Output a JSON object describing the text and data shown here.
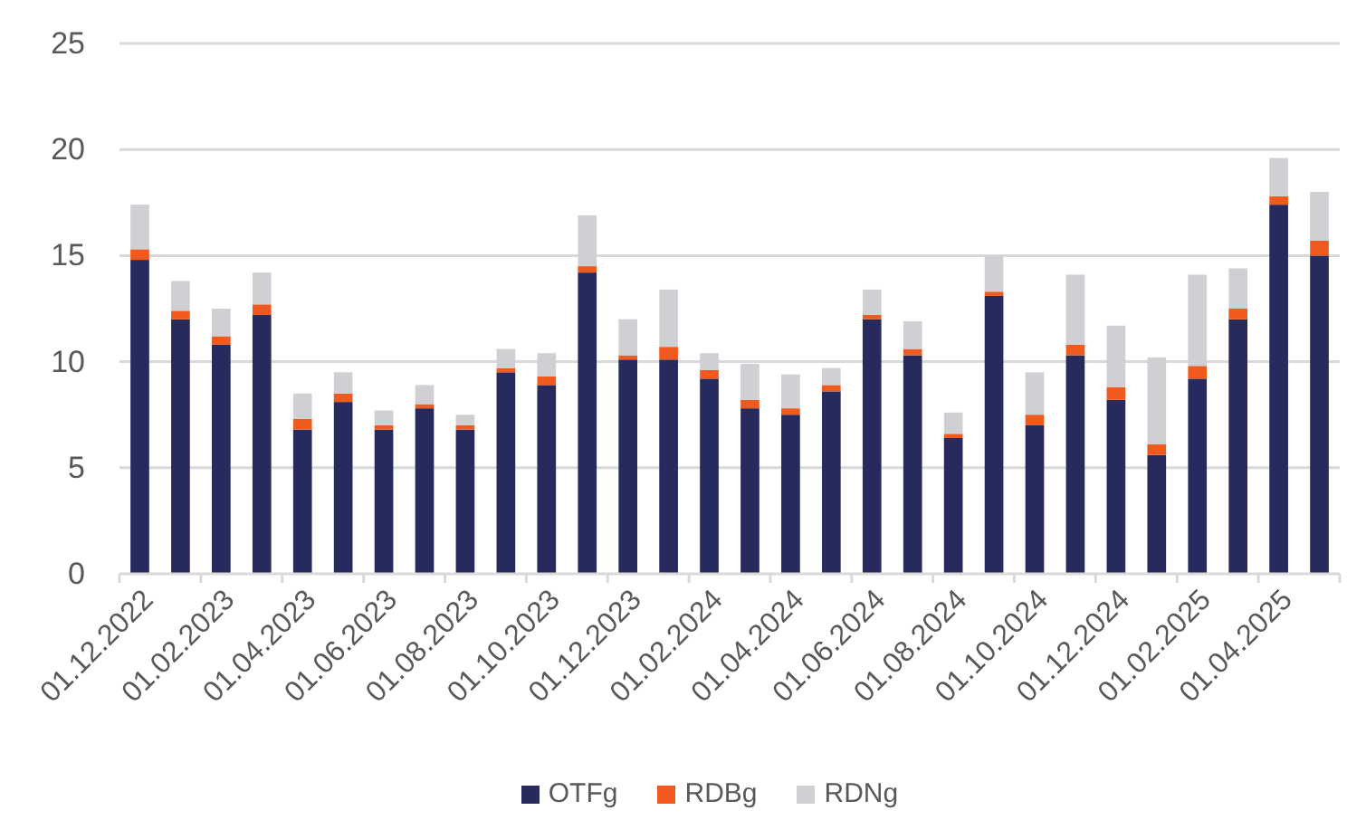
{
  "chart_data": {
    "type": "bar",
    "stacked": true,
    "categories": [
      "01.12.2022",
      null,
      "01.02.2023",
      null,
      "01.04.2023",
      null,
      "01.06.2023",
      null,
      "01.08.2023",
      null,
      "01.10.2023",
      null,
      "01.12.2023",
      null,
      "01.02.2024",
      null,
      "01.04.2024",
      null,
      "01.06.2024",
      null,
      "01.08.2024",
      null,
      "01.10.2024",
      null,
      "01.12.2024",
      null,
      "01.02.2025",
      null,
      "01.04.2025",
      null
    ],
    "series": [
      {
        "name": "OTFg",
        "color": "#262a5c",
        "values": [
          14.8,
          12.0,
          10.8,
          12.2,
          6.8,
          8.1,
          6.8,
          7.8,
          6.8,
          9.5,
          8.9,
          14.2,
          10.1,
          10.1,
          9.2,
          7.8,
          7.5,
          8.6,
          12.0,
          10.3,
          6.4,
          13.1,
          7.0,
          10.3,
          8.2,
          5.6,
          9.2,
          12.0,
          17.4,
          15.0
        ]
      },
      {
        "name": "RDBg",
        "color": "#f05a1e",
        "values": [
          0.5,
          0.4,
          0.4,
          0.5,
          0.5,
          0.4,
          0.2,
          0.2,
          0.2,
          0.2,
          0.4,
          0.3,
          0.2,
          0.6,
          0.4,
          0.4,
          0.3,
          0.3,
          0.2,
          0.3,
          0.2,
          0.2,
          0.5,
          0.5,
          0.6,
          0.5,
          0.6,
          0.5,
          0.4,
          0.7
        ]
      },
      {
        "name": "RDNg",
        "color": "#cfd0d3",
        "values": [
          2.1,
          1.4,
          1.3,
          1.5,
          1.2,
          1.0,
          0.7,
          0.9,
          0.5,
          0.9,
          1.1,
          2.4,
          1.7,
          2.7,
          0.8,
          1.7,
          1.6,
          0.8,
          1.2,
          1.3,
          1.0,
          1.7,
          2.0,
          3.3,
          2.9,
          4.1,
          4.3,
          1.9,
          1.8,
          2.3
        ]
      }
    ],
    "ylim": [
      0,
      25
    ],
    "yticks": [
      0,
      5,
      10,
      15,
      20,
      25
    ],
    "grid": "y",
    "legend": "bottom"
  }
}
